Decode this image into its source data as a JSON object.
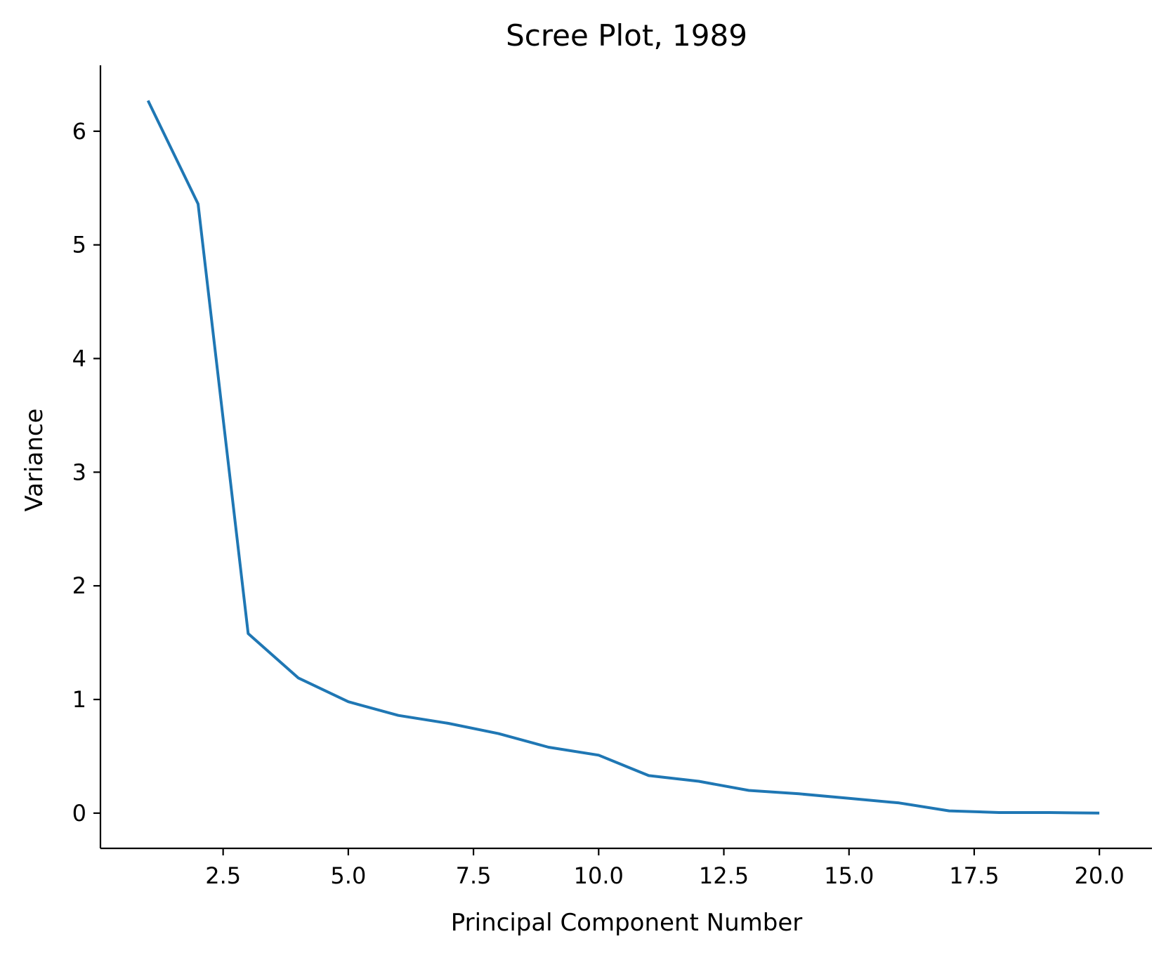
{
  "chart_data": {
    "type": "line",
    "title": "Scree Plot, 1989",
    "xlabel": "Principal Component Number",
    "ylabel": "Variance",
    "xlim": [
      0.05,
      21.05
    ],
    "ylim": [
      -0.31,
      6.58
    ],
    "xticks": [
      2.5,
      5.0,
      7.5,
      10.0,
      12.5,
      15.0,
      17.5,
      20.0
    ],
    "xtick_labels": [
      "2.5",
      "5.0",
      "7.5",
      "10.0",
      "12.5",
      "15.0",
      "17.5",
      "20.0"
    ],
    "yticks": [
      0,
      1,
      2,
      3,
      4,
      5,
      6
    ],
    "ytick_labels": [
      "0",
      "1",
      "2",
      "3",
      "4",
      "5",
      "6"
    ],
    "grid": false,
    "x": [
      1,
      2,
      3,
      4,
      5,
      6,
      7,
      8,
      9,
      10,
      11,
      12,
      13,
      14,
      15,
      16,
      17,
      18,
      19,
      20
    ],
    "series": [
      {
        "color": "#1f77b4",
        "values": [
          6.27,
          5.36,
          1.58,
          1.19,
          0.98,
          0.86,
          0.79,
          0.7,
          0.58,
          0.51,
          0.33,
          0.28,
          0.2,
          0.17,
          0.13,
          0.09,
          0.02,
          0.005,
          0.005,
          0.0
        ]
      }
    ]
  }
}
